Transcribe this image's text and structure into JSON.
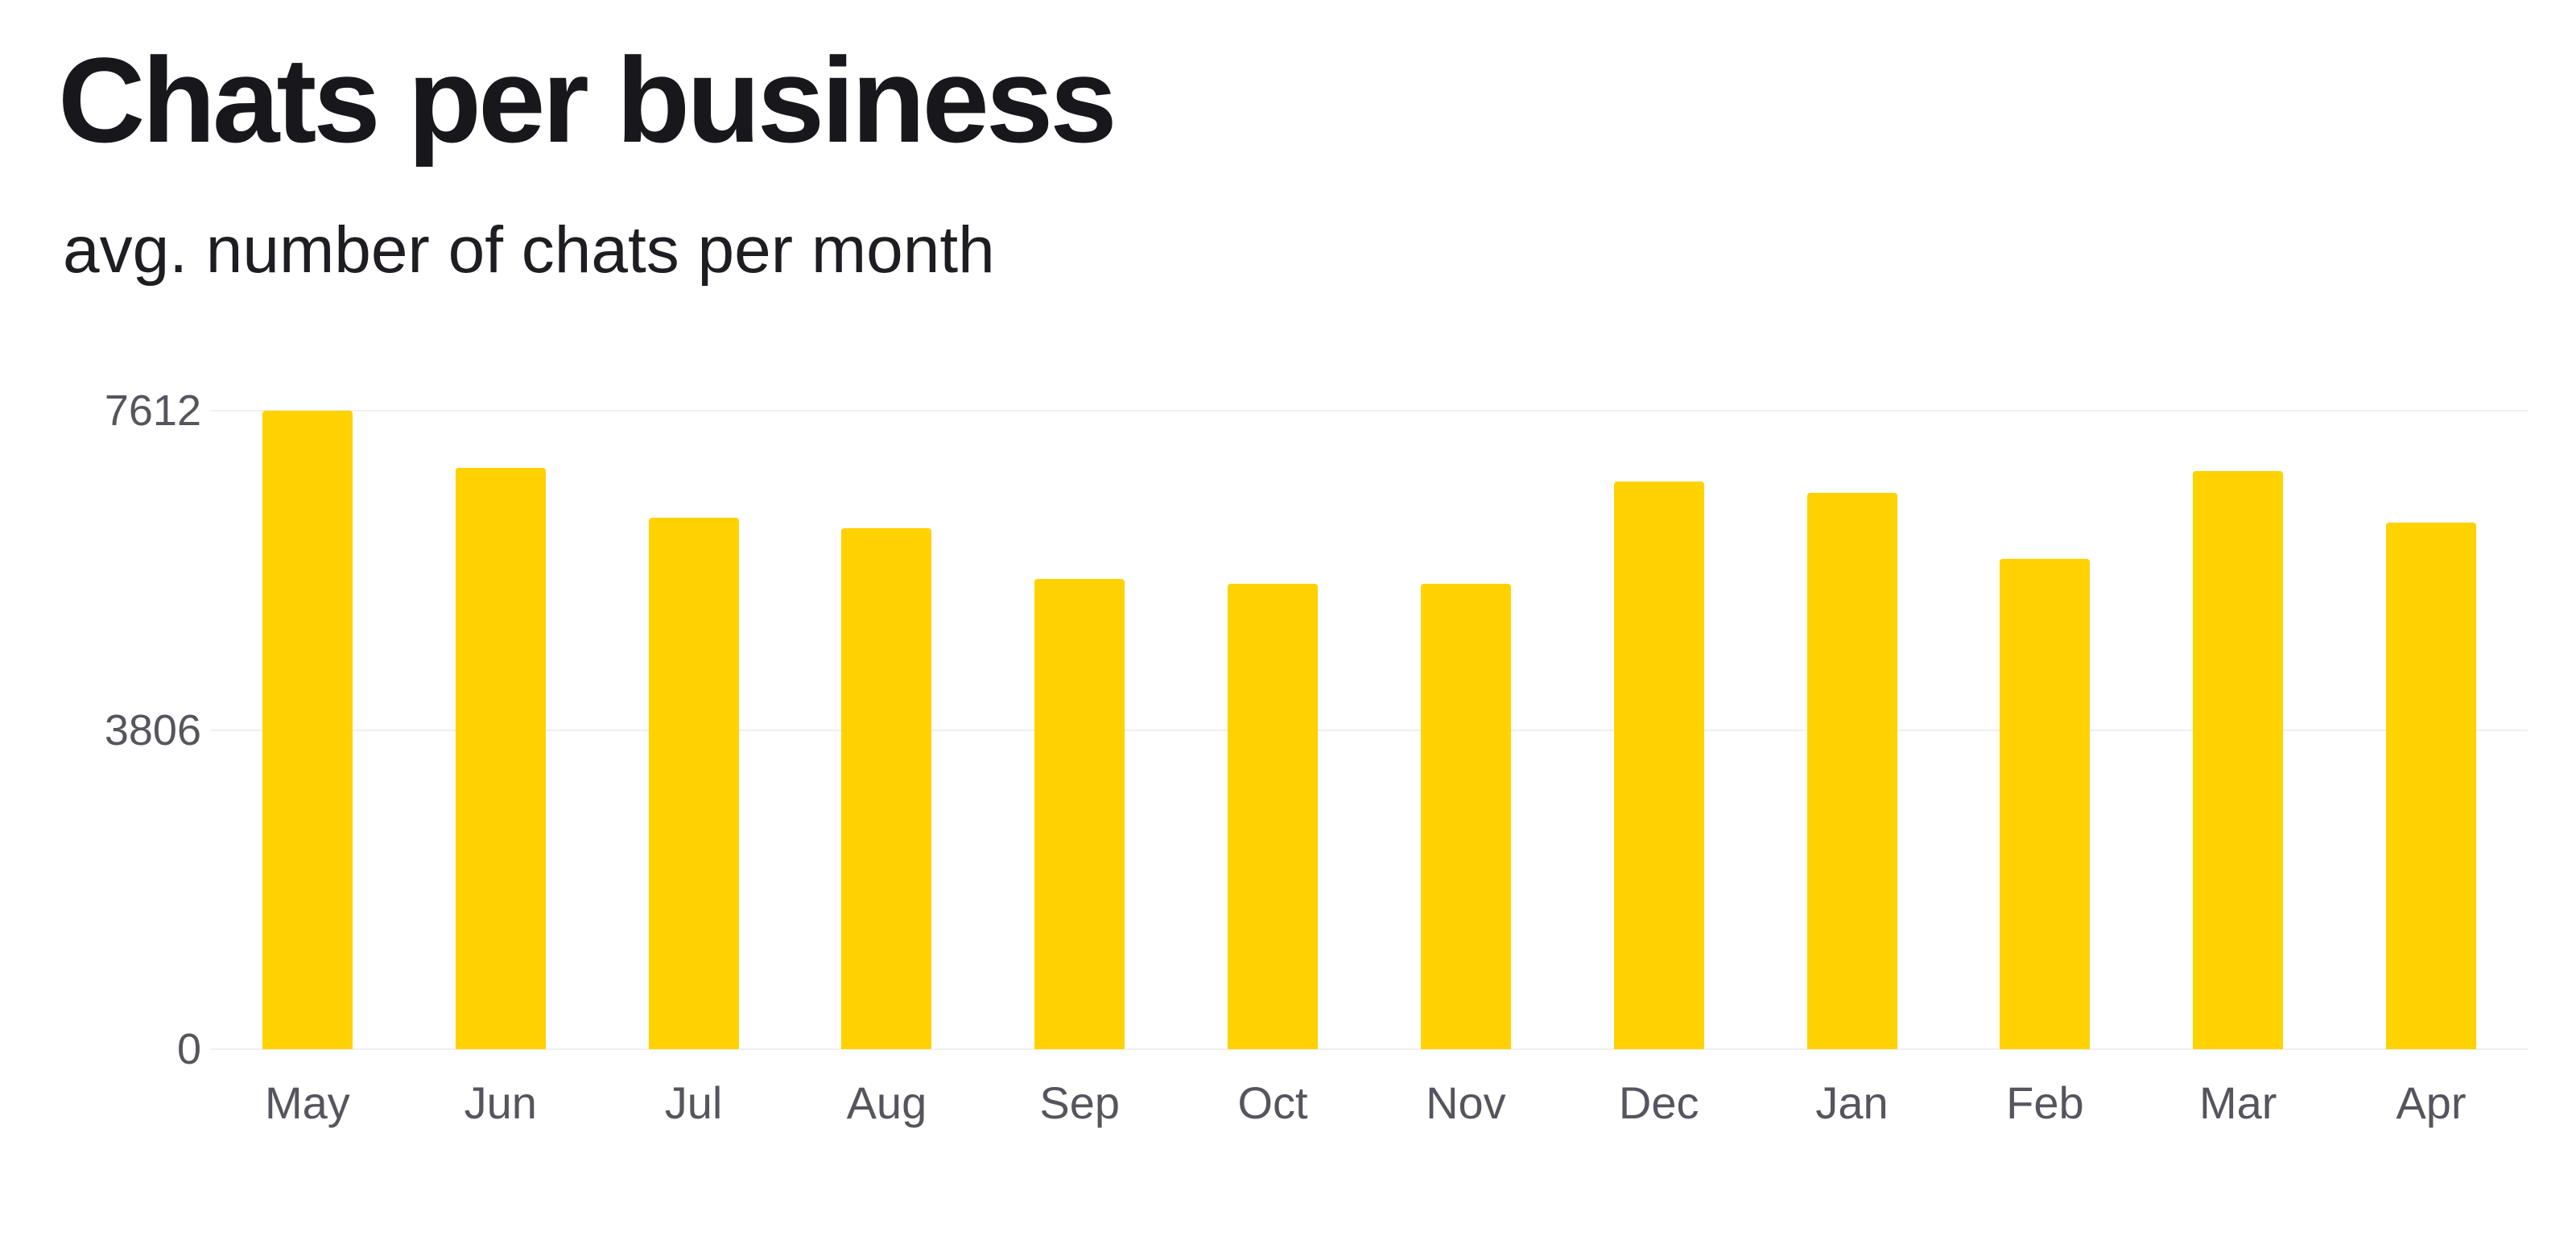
{
  "page": {
    "background": "#ffffff"
  },
  "chart_data": {
    "type": "bar",
    "title": "Chats per business",
    "subtitle": "avg. number of chats per month",
    "categories": [
      "May",
      "Jun",
      "Jul",
      "Aug",
      "Sep",
      "Oct",
      "Nov",
      "Dec",
      "Jan",
      "Feb",
      "Mar",
      "Apr"
    ],
    "values": [
      7612,
      6930,
      6340,
      6210,
      5610,
      5550,
      5550,
      6770,
      6630,
      5850,
      6890,
      6280
    ],
    "xlabel": "",
    "ylabel": "",
    "ylim": [
      0,
      7612
    ],
    "yticks": [
      7612,
      3806,
      0
    ],
    "grid": true,
    "legend": false,
    "bar_color": "#FFD200",
    "gridline_color": "#efeff2",
    "axis_label_color": "#55555e",
    "title_color": "#17171c"
  }
}
